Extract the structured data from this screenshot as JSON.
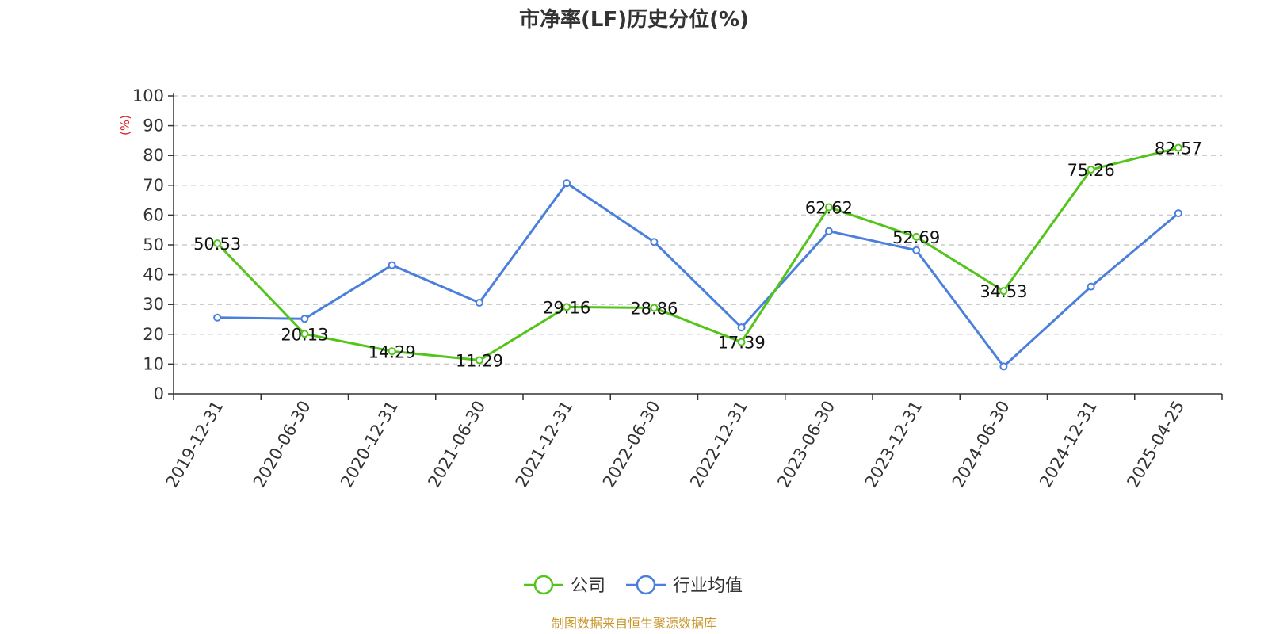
{
  "colors": {
    "company": "#52c41a",
    "industry": "#4a7fdb",
    "grid": "#cccccc",
    "axis": "#333333",
    "unit": "#e02020",
    "source": "#c8962a"
  },
  "footer": {
    "source": "制图数据来自恒生聚源数据库"
  },
  "chart_data": {
    "type": "line",
    "title": "市净率(LF)历史分位(%)",
    "ylabel": "(%)",
    "ylim": [
      0,
      100
    ],
    "yticks": [
      0,
      10,
      20,
      30,
      40,
      50,
      60,
      70,
      80,
      90,
      100
    ],
    "grid": true,
    "legend_position": "bottom",
    "categories": [
      "2019-12-31",
      "2020-06-30",
      "2020-12-31",
      "2021-06-30",
      "2021-12-31",
      "2022-06-30",
      "2022-12-31",
      "2023-06-30",
      "2023-12-31",
      "2024-06-30",
      "2024-12-31",
      "2025-04-25"
    ],
    "series": [
      {
        "name": "公司",
        "color": "#52c41a",
        "values": [
          50.53,
          20.13,
          14.29,
          11.29,
          29.16,
          28.86,
          17.39,
          62.62,
          52.69,
          34.53,
          75.26,
          82.57
        ],
        "labels": [
          "50.53",
          "20.13",
          "14.29",
          "11.29",
          "29.16",
          "28.86",
          "17.39",
          "62.62",
          "52.69",
          "34.53",
          "75.26",
          "82.57"
        ]
      },
      {
        "name": "行业均值",
        "color": "#4a7fdb",
        "values": [
          25.6,
          25.2,
          43.2,
          30.6,
          70.7,
          51.0,
          22.3,
          54.6,
          48.2,
          9.2,
          36.0,
          60.6
        ]
      }
    ]
  }
}
